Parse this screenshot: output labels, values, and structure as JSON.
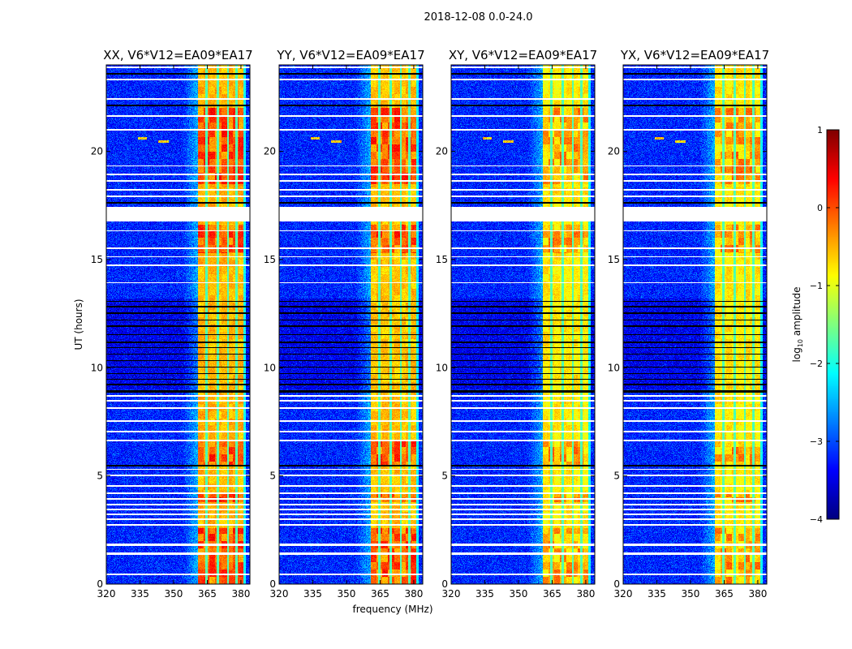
{
  "suptitle": "2018-12-08 0.0-24.0",
  "shared": {
    "ylabel": "UT (hours)",
    "xlabel": "frequency (MHz)",
    "colorbar": {
      "label": "log",
      "label_sub": "10",
      "label_rest": " amplitude",
      "range": [
        -4,
        1
      ],
      "ticks": [
        1,
        0,
        -1,
        -2,
        -3,
        -4
      ],
      "tick_labels": [
        "1",
        "0",
        "−1",
        "−2",
        "−3",
        "−4"
      ],
      "colormap": "jet"
    }
  },
  "chart_data": [
    {
      "type": "heatmap",
      "title": "XX, V6*V12=EA09*EA17",
      "pol": "XX",
      "band_level": -0.7,
      "xlim": [
        320,
        384
      ],
      "ylim": [
        0,
        24
      ],
      "xticks": [
        320,
        335,
        350,
        365,
        380
      ],
      "xtick_labels": [
        "320",
        "335",
        "350",
        "365",
        "380"
      ],
      "yticks": [
        0,
        5,
        10,
        15,
        20
      ],
      "ytick_labels": [
        "0",
        "5",
        "10",
        "15",
        "20"
      ]
    },
    {
      "type": "heatmap",
      "title": "YY, V6*V12=EA09*EA17",
      "pol": "YY",
      "band_level": -0.75,
      "xlim": [
        320,
        384
      ],
      "ylim": [
        0,
        24
      ],
      "xticks": [
        320,
        335,
        350,
        365,
        380
      ],
      "xtick_labels": [
        "320",
        "335",
        "350",
        "365",
        "380"
      ],
      "yticks": [
        0,
        5,
        10,
        15,
        20
      ],
      "ytick_labels": [
        "0",
        "5",
        "10",
        "15",
        "20"
      ]
    },
    {
      "type": "heatmap",
      "title": "XY, V6*V12=EA09*EA17",
      "pol": "XY",
      "band_level": -0.95,
      "xlim": [
        320,
        384
      ],
      "ylim": [
        0,
        24
      ],
      "xticks": [
        320,
        335,
        350,
        365,
        380
      ],
      "xtick_labels": [
        "320",
        "335",
        "350",
        "365",
        "380"
      ],
      "yticks": [
        0,
        5,
        10,
        15,
        20
      ],
      "ytick_labels": [
        "0",
        "5",
        "10",
        "15",
        "20"
      ]
    },
    {
      "type": "heatmap",
      "title": "YX, V6*V12=EA09*EA17",
      "pol": "YX",
      "band_level": -0.95,
      "xlim": [
        320,
        384
      ],
      "ylim": [
        0,
        24
      ],
      "xticks": [
        320,
        335,
        350,
        365,
        380
      ],
      "xtick_labels": [
        "320",
        "335",
        "350",
        "365",
        "380"
      ],
      "yticks": [
        0,
        5,
        10,
        15,
        20
      ],
      "ytick_labels": [
        "0",
        "5",
        "10",
        "15",
        "20"
      ]
    }
  ],
  "signal": {
    "background_level": -3.2,
    "band_mhz": [
      360.8,
      381.0
    ],
    "band_gaps_mhz": [
      364.6,
      369.7,
      374.2,
      378.1
    ],
    "bright_hours": [
      [
        0,
        2.6
      ],
      [
        3.8,
        4.2
      ],
      [
        5.5,
        6.6
      ],
      [
        18.5,
        22.0
      ],
      [
        15.3,
        16.6
      ]
    ],
    "quiet_hours": [
      [
        9.0,
        13.2
      ]
    ],
    "flagged_white_hours": [
      [
        0.4,
        0.48
      ],
      [
        1.35,
        1.45
      ],
      [
        1.78,
        1.86
      ],
      [
        2.7,
        2.78
      ],
      [
        2.95,
        3.05
      ],
      [
        3.2,
        3.28
      ],
      [
        3.42,
        3.5
      ],
      [
        3.65,
        3.72
      ],
      [
        3.9,
        3.98
      ],
      [
        4.15,
        4.22
      ],
      [
        4.5,
        4.58
      ],
      [
        5.0,
        5.08
      ],
      [
        5.28,
        5.34
      ],
      [
        6.6,
        6.68
      ],
      [
        7.02,
        7.1
      ],
      [
        7.5,
        7.56
      ],
      [
        8.1,
        8.16
      ],
      [
        8.45,
        8.52
      ],
      [
        8.65,
        8.72
      ],
      [
        13.9,
        13.96
      ],
      [
        14.7,
        14.76
      ],
      [
        15.1,
        15.16
      ],
      [
        15.5,
        15.56
      ],
      [
        16.3,
        16.36
      ],
      [
        16.75,
        17.45
      ],
      [
        17.9,
        17.96
      ],
      [
        18.2,
        18.26
      ],
      [
        18.6,
        18.66
      ],
      [
        18.9,
        18.96
      ],
      [
        19.3,
        19.36
      ],
      [
        20.95,
        21.05
      ],
      [
        21.6,
        21.68
      ],
      [
        22.4,
        22.48
      ],
      [
        23.3,
        23.36
      ],
      [
        23.85,
        23.92
      ]
    ],
    "flagged_black_hours": [
      [
        5.45,
        5.5
      ],
      [
        8.85,
        8.98
      ],
      [
        9.2,
        9.25
      ],
      [
        9.45,
        9.5
      ],
      [
        9.7,
        9.74
      ],
      [
        10.0,
        10.05
      ],
      [
        10.3,
        10.34
      ],
      [
        10.6,
        10.65
      ],
      [
        10.9,
        10.94
      ],
      [
        11.15,
        11.2
      ],
      [
        11.5,
        11.54
      ],
      [
        11.9,
        11.95
      ],
      [
        12.2,
        12.24
      ],
      [
        12.5,
        12.55
      ],
      [
        12.8,
        12.85
      ],
      [
        13.05,
        13.1
      ],
      [
        17.6,
        17.68
      ],
      [
        22.1,
        22.16
      ],
      [
        23.55,
        23.62
      ]
    ],
    "rfi_tracks": [
      {
        "hour": 20.6,
        "mhz": [
          334,
          338
        ]
      },
      {
        "hour": 20.45,
        "mhz": [
          343,
          348
        ]
      }
    ]
  }
}
